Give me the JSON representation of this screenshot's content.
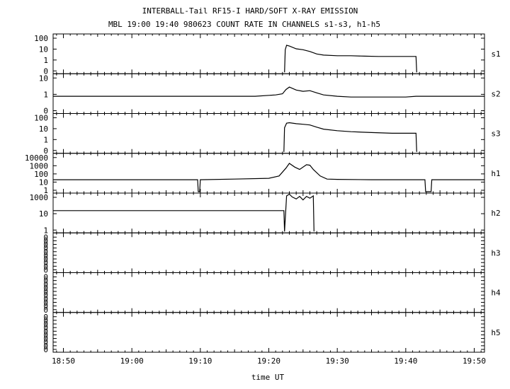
{
  "chart_data": {
    "type": "line",
    "title": "INTERBALL-Tail RF15-I HARD/SOFT X-RAY EMISSION",
    "subtitle": "MBL 19:00 19:40 980623  COUNT RATE IN CHANNELS s1-s3, h1-h5",
    "xlabel": "time UT",
    "x_ticks": [
      "18:50",
      "19:00",
      "19:10",
      "19:20",
      "19:30",
      "19:40",
      "19:50"
    ],
    "x_tick_minutes": [
      -10,
      0,
      10,
      20,
      30,
      40,
      50
    ],
    "xlim_minutes": [
      -11.5,
      51.5
    ],
    "panels": [
      {
        "name": "s1",
        "scale": "log",
        "ylim": [
          0,
          100
        ],
        "tick_labels": [
          "100",
          "10",
          "1",
          "0"
        ],
        "series": [
          {
            "x": [
              22.3,
              22.4,
              22.6,
              23.0,
              24.0,
              25.0,
              26.0,
              27.0,
              28.0,
              30.0,
              32.0,
              34.0,
              36.0,
              38.0,
              40.0,
              41.5,
              41.6
            ],
            "y": [
              0,
              12,
              25,
              22,
              14,
              12,
              9,
              6,
              5,
              4.5,
              4.5,
              4.2,
              4,
              4,
              4,
              4,
              0
            ]
          }
        ]
      },
      {
        "name": "s2",
        "scale": "log",
        "ylim": [
          0.3,
          100
        ],
        "tick_labels": [
          "10",
          "1",
          "0"
        ],
        "series": [
          {
            "x": [
              -12,
              -5,
              0,
              5,
              10,
              15,
              18,
              21,
              22,
              22.5,
              23,
              24,
              25,
              26,
              27,
              28,
              30,
              32,
              35,
              38,
              40,
              41.5,
              45,
              51.5
            ],
            "y": [
              4,
              4,
              4,
              4,
              4,
              4,
              4,
              5,
              6,
              12,
              18,
              11,
              9,
              10,
              7,
              5,
              4,
              3.5,
              3.5,
              3.5,
              3.5,
              4,
              4,
              4
            ]
          }
        ]
      },
      {
        "name": "s3",
        "scale": "log",
        "ylim": [
          0,
          400
        ],
        "tick_labels": [
          "100",
          "10",
          "1",
          "0"
        ],
        "series": [
          {
            "x": [
              22.2,
              22.3,
              22.6,
              23.0,
              24.0,
              25.0,
              26.0,
              27.0,
              28.0,
              30.0,
              32.0,
              35.0,
              38.0,
              41.5,
              41.6
            ],
            "y": [
              0,
              40,
              100,
              110,
              90,
              80,
              70,
              45,
              30,
              22,
              18,
              15,
              13,
              13,
              0
            ]
          }
        ]
      },
      {
        "name": "h1",
        "scale": "log",
        "ylim": [
          0.3,
          10000
        ],
        "tick_labels": [
          "10000",
          "1000",
          "100",
          "10",
          "1"
        ],
        "series": [
          {
            "x": [
              -12,
              0,
              9.6,
              9.7,
              9.9,
              10.0,
              15,
              20,
              21.5,
              22.5,
              23.0,
              23.8,
              24.5,
              25.5,
              26.0,
              26.5,
              27.5,
              28.5,
              30,
              35,
              40,
              42.8,
              42.9,
              43.7,
              43.8,
              51.5
            ],
            "y": [
              10,
              10,
              10,
              0.3,
              0.3,
              10,
              12,
              15,
              30,
              300,
              1200,
              400,
              200,
              800,
              700,
              200,
              30,
              12,
              11,
              10,
              10,
              10,
              0.3,
              0.3,
              10,
              10
            ]
          }
        ]
      },
      {
        "name": "h2",
        "scale": "log",
        "ylim": [
          0.3,
          1000
        ],
        "tick_labels": [
          "1000",
          "10",
          "1"
        ],
        "series": [
          {
            "x": [
              -12,
              22.2,
              22.3,
              22.6,
              23.0,
              23.4,
              24.0,
              24.5,
              25.0,
              25.5,
              26.0,
              26.5,
              26.6
            ],
            "y": [
              35,
              35,
              0.3,
              1000,
              1500,
              800,
              500,
              900,
              400,
              900,
              600,
              1000,
              0.3
            ]
          }
        ]
      },
      {
        "name": "h3",
        "scale": "linear",
        "ylim": [
          0,
          1
        ],
        "tick_labels": [
          "0",
          "0",
          "0",
          "0",
          "0",
          "0",
          "0",
          "0",
          "0",
          "0"
        ],
        "series": []
      },
      {
        "name": "h4",
        "scale": "linear",
        "ylim": [
          0,
          1
        ],
        "tick_labels": [
          "0",
          "0",
          "0",
          "0",
          "0",
          "0",
          "0",
          "0",
          "0",
          "0"
        ],
        "series": []
      },
      {
        "name": "h5",
        "scale": "linear",
        "ylim": [
          0,
          1
        ],
        "tick_labels": [
          "0",
          "0",
          "0",
          "0",
          "0",
          "0",
          "0",
          "0",
          "0",
          "0"
        ],
        "series": []
      }
    ]
  }
}
